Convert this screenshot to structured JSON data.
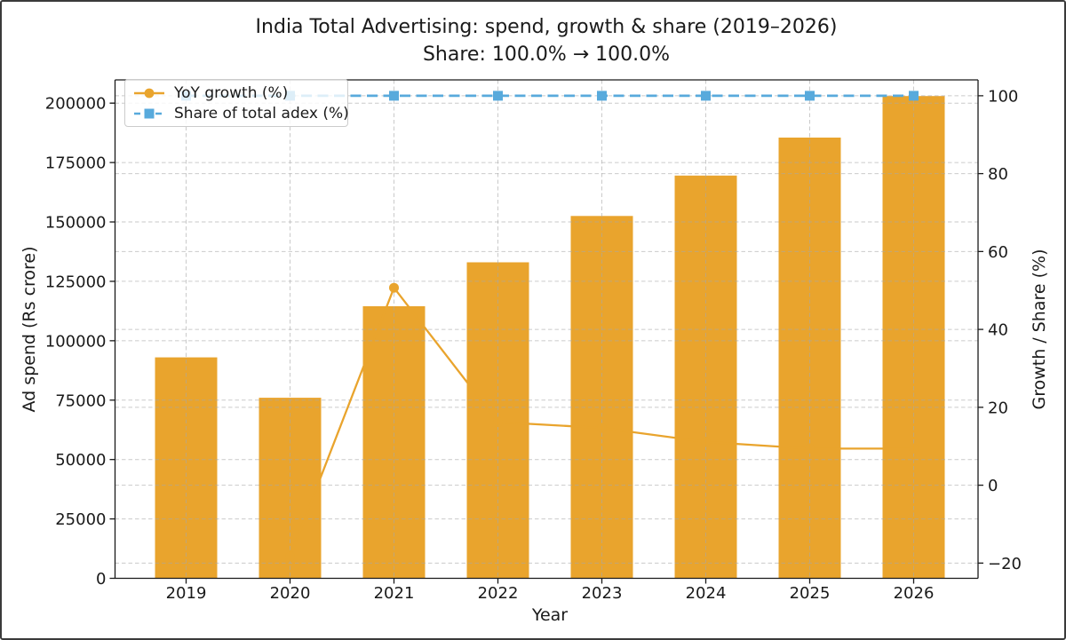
{
  "window": {
    "background": "#ffffff",
    "frame_border_color": "#3a3a3a"
  },
  "chart_data": {
    "type": "bar",
    "subtype": "bar + line combo, dual y-axis",
    "title": "India Total Advertising: spend, growth & share (2019–2026)",
    "subtitle": "Share: 100.0% → 100.0%",
    "xlabel": "Year",
    "ylabel_left": "Ad spend (Rs crore)",
    "ylabel_right": "Growth / Share (%)",
    "categories": [
      "2019",
      "2020",
      "2021",
      "2022",
      "2023",
      "2024",
      "2025",
      "2026"
    ],
    "series": [
      {
        "name": "Ad spend (Rs crore)",
        "type": "bar",
        "axis": "left",
        "color": "#E9A42D",
        "values": [
          93000,
          76000,
          114500,
          133000,
          152500,
          169500,
          185500,
          203000
        ]
      },
      {
        "name": "YoY growth (%)",
        "type": "line",
        "axis": "right",
        "marker": "circle",
        "linestyle": "solid",
        "color": "#E9A42D",
        "values": [
          null,
          -18.3,
          50.7,
          16.2,
          14.7,
          11.1,
          9.4,
          9.4
        ]
      },
      {
        "name": "Share of total adex (%)",
        "type": "line",
        "axis": "right",
        "marker": "square",
        "linestyle": "dashed",
        "color": "#58AADC",
        "values": [
          100,
          100,
          100,
          100,
          100,
          100,
          100,
          100
        ]
      }
    ],
    "axes": {
      "left": {
        "tick_values": [
          0,
          25000,
          50000,
          75000,
          100000,
          125000,
          150000,
          175000,
          200000
        ],
        "tick_labels": [
          "0",
          "25000",
          "50000",
          "75000",
          "100000",
          "125000",
          "150000",
          "175000",
          "200000"
        ],
        "range": [
          0,
          210000
        ]
      },
      "right": {
        "tick_values": [
          -20,
          0,
          20,
          40,
          60,
          80,
          100
        ],
        "tick_labels": [
          "−20",
          "0",
          "20",
          "40",
          "60",
          "80",
          "100"
        ],
        "range": [
          -24,
          104
        ]
      }
    },
    "grid": true,
    "legend": {
      "position": "upper left",
      "items": [
        {
          "label": "YoY growth (%)"
        },
        {
          "label": "Share of total adex (%)"
        }
      ]
    }
  }
}
